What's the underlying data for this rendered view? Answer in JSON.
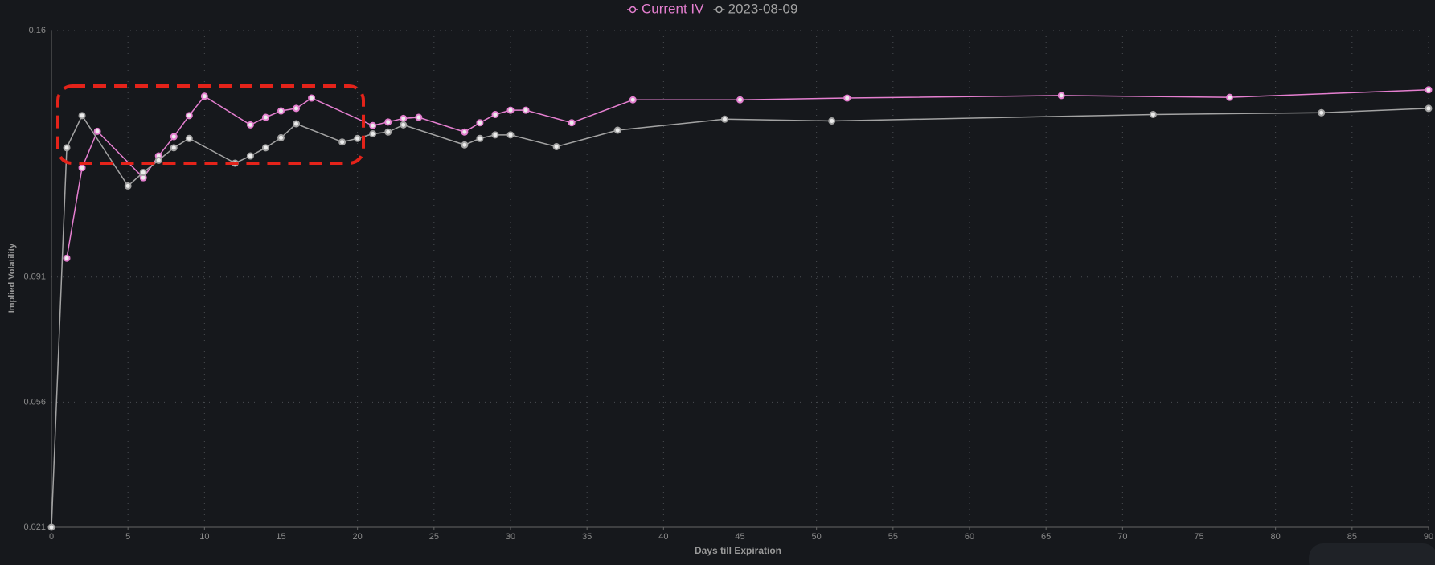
{
  "chart_data": {
    "type": "line",
    "x_label": "Days till Expiration",
    "y_label": "Implied Volatility",
    "xlim": [
      0,
      90
    ],
    "xticks": [
      0,
      5,
      10,
      15,
      20,
      25,
      30,
      35,
      40,
      45,
      50,
      55,
      60,
      65,
      70,
      75,
      80,
      85,
      90
    ],
    "ylim": [
      0.021,
      0.16
    ],
    "yticks": [
      0.021,
      0.056,
      0.091,
      0.16
    ],
    "grid": true,
    "legend": "top",
    "series": [
      {
        "name": "Current IV",
        "color": "#e57fd0",
        "x": [
          1,
          2,
          3,
          6,
          7,
          8,
          9,
          10,
          13,
          14,
          15,
          16,
          17,
          21,
          22,
          23,
          24,
          27,
          28,
          29,
          30,
          31,
          34,
          38,
          45,
          52,
          66,
          77,
          90
        ],
        "values": [
          0.0963,
          0.1216,
          0.1318,
          0.1188,
          0.1249,
          0.1303,
          0.1362,
          0.1416,
          0.1336,
          0.1357,
          0.1375,
          0.1382,
          0.1411,
          0.1334,
          0.1344,
          0.1354,
          0.1357,
          0.1316,
          0.1342,
          0.1365,
          0.1377,
          0.1377,
          0.1342,
          0.1406,
          0.1406,
          0.1411,
          0.1418,
          0.1413,
          0.1434
        ]
      },
      {
        "name": "2023-08-09",
        "color": "#a3a3a3",
        "x": [
          0,
          1,
          2,
          5,
          6,
          7,
          8,
          9,
          12,
          13,
          14,
          15,
          16,
          19,
          20,
          21,
          22,
          23,
          27,
          28,
          29,
          30,
          33,
          37,
          44,
          51,
          72,
          83,
          90
        ],
        "values": [
          0.021,
          0.1272,
          0.1362,
          0.1165,
          0.1203,
          0.1237,
          0.1272,
          0.1298,
          0.1229,
          0.1249,
          0.1272,
          0.13,
          0.1339,
          0.1288,
          0.1298,
          0.1311,
          0.1316,
          0.1336,
          0.128,
          0.1298,
          0.1308,
          0.1308,
          0.1275,
          0.1321,
          0.1352,
          0.1347,
          0.1365,
          0.137,
          0.1382
        ]
      }
    ]
  }
}
